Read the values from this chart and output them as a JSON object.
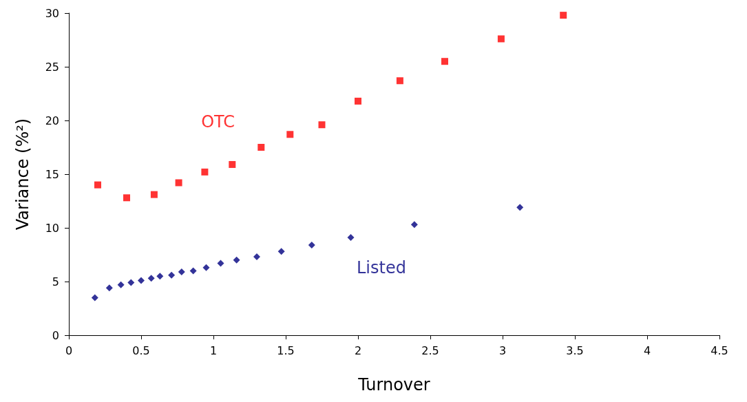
{
  "chart_data": {
    "type": "scatter",
    "xlabel": "Turnover",
    "ylabel": "Variance (%²)",
    "xlim": [
      0,
      4.5
    ],
    "xticks": [
      0,
      0.5,
      1,
      1.5,
      2,
      2.5,
      3,
      3.5,
      4,
      4.5
    ],
    "ylim": [
      0,
      30
    ],
    "yticks": [
      0,
      5,
      10,
      15,
      20,
      25,
      30
    ],
    "grid": false,
    "legend": false,
    "series": [
      {
        "name": "OTC",
        "color": "#ff0000",
        "marker": "square",
        "x": [
          0.2,
          0.4,
          0.59,
          0.76,
          0.94,
          1.13,
          1.33,
          1.53,
          1.75,
          2.0,
          2.29,
          2.6,
          2.99,
          3.42
        ],
        "values": [
          14.0,
          12.8,
          13.1,
          14.2,
          15.2,
          15.9,
          17.5,
          18.7,
          19.6,
          21.8,
          23.7,
          25.5,
          27.6,
          29.8
        ]
      },
      {
        "name": "Listed",
        "color": "#000080",
        "marker": "diamond",
        "x": [
          0.18,
          0.28,
          0.36,
          0.43,
          0.5,
          0.57,
          0.63,
          0.71,
          0.78,
          0.86,
          0.95,
          1.05,
          1.16,
          1.3,
          1.47,
          1.68,
          1.95,
          2.39,
          3.12
        ],
        "values": [
          3.5,
          4.4,
          4.7,
          4.9,
          5.1,
          5.3,
          5.5,
          5.6,
          5.9,
          6.0,
          6.3,
          6.7,
          7.0,
          7.3,
          7.8,
          8.4,
          9.1,
          10.3,
          11.9
        ]
      }
    ]
  }
}
